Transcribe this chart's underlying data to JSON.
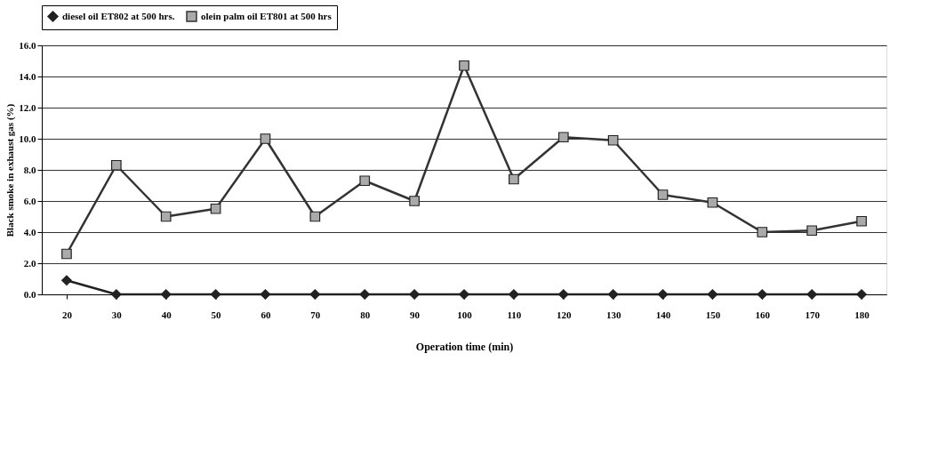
{
  "chart_data": {
    "type": "line",
    "xlabel": "Operation time (min)",
    "ylabel": "Black smoke in exhaust gas (%)",
    "categories": [
      "20",
      "30",
      "40",
      "50",
      "60",
      "70",
      "80",
      "90",
      "100",
      "110",
      "120",
      "130",
      "140",
      "150",
      "160",
      "170",
      "180"
    ],
    "series": [
      {
        "name": "diesel oil ET802 at 500 hrs.",
        "color": "#222222",
        "marker": "diamond",
        "values": [
          0.9,
          0,
          0,
          0,
          0,
          0,
          0,
          0,
          0,
          0,
          0,
          0,
          0,
          0,
          0,
          0,
          0
        ]
      },
      {
        "name": "olein palm oil ET801 at 500 hrs",
        "color": "#333333",
        "marker": "square",
        "values": [
          2.6,
          8.3,
          5.0,
          5.5,
          10.0,
          5.0,
          7.3,
          6.0,
          14.7,
          7.4,
          10.1,
          9.9,
          6.4,
          5.9,
          4.0,
          4.1,
          4.7
        ]
      }
    ],
    "ylim": [
      0,
      16
    ],
    "yticks": [
      {
        "value": 0,
        "label": "0.0"
      },
      {
        "value": 2,
        "label": "2.0"
      },
      {
        "value": 4,
        "label": "4.0"
      },
      {
        "value": 6,
        "label": "6.0"
      },
      {
        "value": 8,
        "label": "8.0"
      },
      {
        "value": 10,
        "label": "10.0"
      },
      {
        "value": 12,
        "label": "12.0"
      },
      {
        "value": 14,
        "label": "14.0"
      },
      {
        "value": 16,
        "label": "16.0"
      }
    ],
    "grid": "y",
    "legend": "top",
    "line_style": "solid"
  }
}
